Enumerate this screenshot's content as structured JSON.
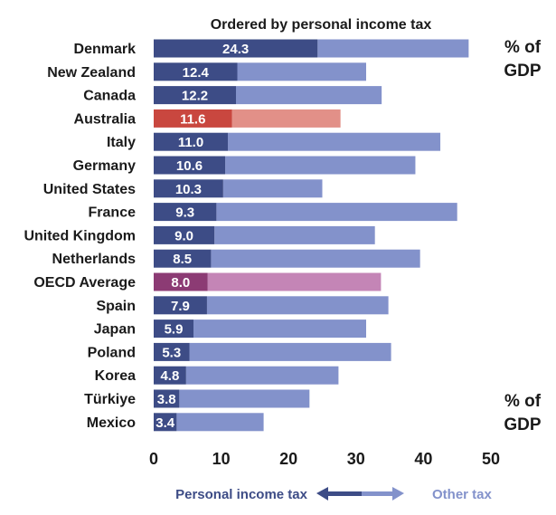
{
  "chart_data": {
    "type": "bar",
    "orientation": "horizontal",
    "stacked": true,
    "title": "Ordered by personal income tax",
    "unit_label_top": "% of GDP",
    "unit_label_bottom": "% of GDP",
    "xlim": [
      0,
      50
    ],
    "x_ticks": [
      "0",
      "10",
      "20",
      "30",
      "40",
      "50"
    ],
    "categories": [
      "Denmark",
      "New Zealand",
      "Canada",
      "Australia",
      "Italy",
      "Germany",
      "United States",
      "France",
      "United Kingdom",
      "Netherlands",
      "OECD Average",
      "Spain",
      "Japan",
      "Poland",
      "Korea",
      "Türkiye",
      "Mexico"
    ],
    "value_labels": [
      "24.3",
      "12.4",
      "12.2",
      "11.6",
      "11.0",
      "10.6",
      "10.3",
      "9.3",
      "9.0",
      "8.5",
      "8.0",
      "7.9",
      "5.9",
      "5.3",
      "4.8",
      "3.8",
      "3.4"
    ],
    "series": [
      {
        "name": "Personal income tax",
        "values": [
          24.3,
          12.4,
          12.2,
          11.6,
          11.0,
          10.6,
          10.3,
          9.3,
          9.0,
          8.5,
          8.0,
          7.9,
          5.9,
          5.3,
          4.8,
          3.8,
          3.4
        ]
      },
      {
        "name": "Other tax",
        "values": [
          22.4,
          19.1,
          21.6,
          16.1,
          31.5,
          28.2,
          14.7,
          35.7,
          23.8,
          31.0,
          25.7,
          26.9,
          25.6,
          29.9,
          22.6,
          19.3,
          12.9
        ]
      }
    ],
    "highlights": {
      "Australia": "highlight-red",
      "OECD Average": "highlight-purple"
    },
    "colors": {
      "personal_default": "#3d4c86",
      "other_default": "#8392cb",
      "personal_australia": "#c9473f",
      "other_australia": "#e29088",
      "personal_oecd": "#8c3b74",
      "other_oecd": "#c485b6",
      "legend_personal": "#3d4c86",
      "legend_other": "#8392cb"
    },
    "legend": {
      "placement": "bottom",
      "items": [
        "Personal income tax",
        "Other tax"
      ]
    },
    "grid": false
  }
}
